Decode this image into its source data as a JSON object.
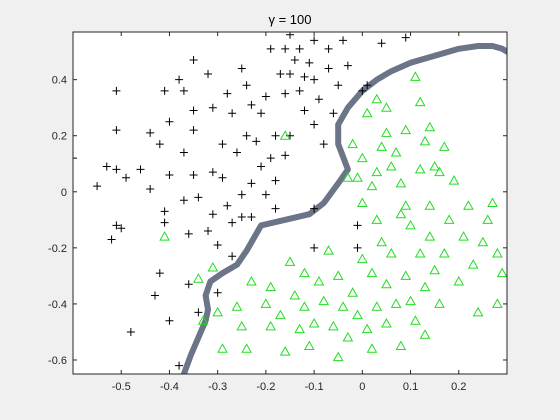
{
  "chart_data": {
    "type": "scatter",
    "title": "γ = 100",
    "xlabel": "",
    "ylabel": "",
    "xlim": [
      -0.6,
      0.3
    ],
    "ylim": [
      -0.65,
      0.57
    ],
    "x_ticks": [
      -0.5,
      -0.4,
      -0.3,
      -0.2,
      -0.1,
      0,
      0.1,
      0.2
    ],
    "x_tick_labels": [
      "-0.5",
      "-0.4",
      "-0.3",
      "-0.2",
      "-0.1",
      "0",
      "0.1",
      "0.2"
    ],
    "y_ticks": [
      -0.6,
      -0.4,
      -0.2,
      0,
      0.2,
      0.4
    ],
    "y_tick_labels": [
      "-0.6",
      "-0.4",
      "-0.2",
      "0",
      "0.2",
      "0.4"
    ],
    "grid": false,
    "legend": "none",
    "colors": {
      "plus_series": "#000000",
      "triangle_series": "#22dd22",
      "boundary": "#6b7587",
      "axes_background": "#ffffff",
      "figure_background": "#f0f0f0"
    },
    "series": [
      {
        "marker": "plus",
        "points": [
          [
            -0.6,
            0.12
          ],
          [
            -0.55,
            0.02
          ],
          [
            -0.53,
            0.09
          ],
          [
            -0.51,
            0.36
          ],
          [
            -0.51,
            0.22
          ],
          [
            -0.52,
            -0.17
          ],
          [
            -0.51,
            -0.12
          ],
          [
            -0.5,
            -0.13
          ],
          [
            -0.51,
            0.08
          ],
          [
            -0.49,
            0.05
          ],
          [
            -0.48,
            -0.5
          ],
          [
            -0.46,
            0.08
          ],
          [
            -0.44,
            0.21
          ],
          [
            -0.44,
            0.01
          ],
          [
            -0.43,
            -0.37
          ],
          [
            -0.42,
            -0.29
          ],
          [
            -0.42,
            0.17
          ],
          [
            -0.41,
            0.36
          ],
          [
            -0.4,
            0.06
          ],
          [
            -0.41,
            -0.07
          ],
          [
            -0.41,
            -0.11
          ],
          [
            -0.4,
            -0.46
          ],
          [
            -0.4,
            0.25
          ],
          [
            -0.38,
            0.4
          ],
          [
            -0.37,
            0.36
          ],
          [
            -0.37,
            0.14
          ],
          [
            -0.37,
            -0.03
          ],
          [
            -0.38,
            -0.62
          ],
          [
            -0.35,
            0.47
          ],
          [
            -0.36,
            -0.15
          ],
          [
            -0.36,
            -0.33
          ],
          [
            -0.35,
            0.29
          ],
          [
            -0.35,
            0.22
          ],
          [
            -0.35,
            0.06
          ],
          [
            -0.34,
            -0.02
          ],
          [
            -0.34,
            -0.43
          ],
          [
            -0.32,
            0.42
          ],
          [
            -0.32,
            -0.14
          ],
          [
            -0.31,
            0.3
          ],
          [
            -0.31,
            0.07
          ],
          [
            -0.31,
            -0.08
          ],
          [
            -0.3,
            -0.19
          ],
          [
            -0.3,
            -0.36
          ],
          [
            -0.29,
            0.17
          ],
          [
            -0.29,
            0.05
          ],
          [
            -0.28,
            0.35
          ],
          [
            -0.28,
            -0.05
          ],
          [
            -0.27,
            0.28
          ],
          [
            -0.27,
            -0.11
          ],
          [
            -0.27,
            -0.23
          ],
          [
            -0.26,
            0.14
          ],
          [
            -0.25,
            0.44
          ],
          [
            -0.25,
            -0.01
          ],
          [
            -0.25,
            -0.09
          ],
          [
            -0.24,
            0.38
          ],
          [
            -0.24,
            0.2
          ],
          [
            -0.23,
            0.31
          ],
          [
            -0.23,
            0.03
          ],
          [
            -0.23,
            -0.09
          ],
          [
            -0.22,
            0.18
          ],
          [
            -0.21,
            0.28
          ],
          [
            -0.21,
            0.09
          ],
          [
            -0.2,
            -0.01
          ],
          [
            -0.2,
            0.34
          ],
          [
            -0.19,
            0.51
          ],
          [
            -0.19,
            0.12
          ],
          [
            -0.18,
            0.2
          ],
          [
            -0.18,
            0.04
          ],
          [
            -0.18,
            -0.06
          ],
          [
            -0.17,
            0.42
          ],
          [
            -0.16,
            0.51
          ],
          [
            -0.16,
            0.35
          ],
          [
            -0.16,
            0.13
          ],
          [
            -0.15,
            0.2
          ],
          [
            -0.15,
            0.56
          ],
          [
            -0.15,
            0.42
          ],
          [
            -0.14,
            0.47
          ],
          [
            -0.13,
            0.36
          ],
          [
            -0.13,
            0.51
          ],
          [
            -0.12,
            0.29
          ],
          [
            -0.12,
            0.41
          ],
          [
            -0.11,
            0.46
          ],
          [
            -0.1,
            0.54
          ],
          [
            -0.1,
            0.4
          ],
          [
            -0.1,
            0.24
          ],
          [
            -0.1,
            -0.06
          ],
          [
            -0.1,
            -0.2
          ],
          [
            -0.09,
            0.33
          ],
          [
            -0.08,
            0.17
          ],
          [
            -0.07,
            0.44
          ],
          [
            -0.07,
            0.51
          ],
          [
            -0.06,
            0.28
          ],
          [
            -0.05,
            0.38
          ],
          [
            -0.04,
            0.54
          ],
          [
            -0.03,
            0.45
          ],
          [
            -0.01,
            -0.12
          ],
          [
            -0.01,
            -0.2
          ],
          [
            0.0,
            0.36
          ],
          [
            0.01,
            0.38
          ],
          [
            0.04,
            0.53
          ],
          [
            0.09,
            0.55
          ]
        ]
      },
      {
        "marker": "triangle",
        "points": [
          [
            -0.41,
            -0.16
          ],
          [
            -0.34,
            -0.31
          ],
          [
            -0.33,
            -0.46
          ],
          [
            -0.31,
            -0.27
          ],
          [
            -0.3,
            -0.43
          ],
          [
            -0.29,
            -0.56
          ],
          [
            -0.26,
            -0.41
          ],
          [
            -0.25,
            -0.48
          ],
          [
            -0.24,
            -0.56
          ],
          [
            -0.23,
            -0.32
          ],
          [
            -0.2,
            -0.4
          ],
          [
            -0.19,
            -0.48
          ],
          [
            -0.19,
            -0.34
          ],
          [
            -0.17,
            -0.44
          ],
          [
            -0.16,
            -0.57
          ],
          [
            -0.15,
            -0.25
          ],
          [
            -0.14,
            -0.37
          ],
          [
            -0.13,
            -0.49
          ],
          [
            -0.12,
            -0.29
          ],
          [
            -0.12,
            -0.41
          ],
          [
            -0.11,
            -0.55
          ],
          [
            -0.1,
            -0.47
          ],
          [
            -0.09,
            -0.32
          ],
          [
            -0.08,
            -0.39
          ],
          [
            -0.07,
            -0.21
          ],
          [
            -0.06,
            -0.48
          ],
          [
            -0.05,
            -0.59
          ],
          [
            -0.05,
            -0.3
          ],
          [
            -0.04,
            -0.41
          ],
          [
            -0.03,
            -0.52
          ],
          [
            -0.02,
            -0.36
          ],
          [
            -0.01,
            -0.44
          ],
          [
            0.0,
            -0.24
          ],
          [
            0.01,
            -0.49
          ],
          [
            0.02,
            -0.56
          ],
          [
            0.02,
            -0.29
          ],
          [
            0.03,
            -0.41
          ],
          [
            0.03,
            -0.1
          ],
          [
            0.04,
            -0.18
          ],
          [
            0.05,
            -0.33
          ],
          [
            0.05,
            -0.47
          ],
          [
            0.06,
            -0.22
          ],
          [
            0.07,
            -0.4
          ],
          [
            0.08,
            -0.55
          ],
          [
            0.08,
            -0.08
          ],
          [
            0.09,
            -0.3
          ],
          [
            0.1,
            -0.12
          ],
          [
            0.1,
            -0.39
          ],
          [
            0.11,
            -0.46
          ],
          [
            0.12,
            -0.22
          ],
          [
            0.13,
            -0.34
          ],
          [
            0.13,
            -0.51
          ],
          [
            0.14,
            -0.05
          ],
          [
            0.14,
            -0.16
          ],
          [
            0.15,
            0.09
          ],
          [
            0.15,
            -0.28
          ],
          [
            0.16,
            -0.4
          ],
          [
            0.17,
            0.16
          ],
          [
            0.17,
            -0.22
          ],
          [
            0.18,
            -0.1
          ],
          [
            0.19,
            0.04
          ],
          [
            0.2,
            -0.32
          ],
          [
            0.21,
            -0.16
          ],
          [
            0.22,
            -0.05
          ],
          [
            0.23,
            -0.26
          ],
          [
            0.24,
            -0.43
          ],
          [
            0.25,
            -0.18
          ],
          [
            0.26,
            -0.1
          ],
          [
            0.27,
            -0.04
          ],
          [
            0.28,
            -0.22
          ],
          [
            0.28,
            -0.4
          ],
          [
            0.29,
            -0.29
          ],
          [
            0.11,
            0.41
          ],
          [
            0.12,
            0.32
          ],
          [
            0.09,
            0.22
          ],
          [
            0.07,
            0.14
          ],
          [
            0.05,
            0.21
          ],
          [
            0.04,
            0.16
          ],
          [
            0.03,
            0.07
          ],
          [
            0.02,
            0.02
          ],
          [
            0.0,
            0.12
          ],
          [
            -0.01,
            0.05
          ],
          [
            -0.02,
            0.17
          ],
          [
            -0.03,
            0.05
          ],
          [
            0.0,
            -0.04
          ],
          [
            0.06,
            0.09
          ],
          [
            0.08,
            0.03
          ],
          [
            0.09,
            -0.05
          ],
          [
            0.12,
            0.08
          ],
          [
            0.13,
            0.18
          ],
          [
            0.14,
            0.23
          ],
          [
            0.16,
            0.07
          ],
          [
            0.01,
            0.28
          ],
          [
            0.05,
            0.3
          ],
          [
            0.03,
            0.33
          ],
          [
            -0.16,
            0.2
          ]
        ]
      }
    ],
    "decision_boundary": [
      [
        -0.37,
        -0.65
      ],
      [
        -0.355,
        -0.58
      ],
      [
        -0.34,
        -0.52
      ],
      [
        -0.325,
        -0.46
      ],
      [
        -0.32,
        -0.42
      ],
      [
        -0.325,
        -0.37
      ],
      [
        -0.315,
        -0.32
      ],
      [
        -0.29,
        -0.29
      ],
      [
        -0.26,
        -0.26
      ],
      [
        -0.24,
        -0.21
      ],
      [
        -0.21,
        -0.12
      ],
      [
        -0.16,
        -0.1
      ],
      [
        -0.11,
        -0.08
      ],
      [
        -0.08,
        -0.04
      ],
      [
        -0.05,
        0.03
      ],
      [
        -0.03,
        0.08
      ],
      [
        -0.05,
        0.17
      ],
      [
        -0.05,
        0.24
      ],
      [
        -0.03,
        0.3
      ],
      [
        0.0,
        0.36
      ],
      [
        0.03,
        0.4
      ],
      [
        0.06,
        0.43
      ],
      [
        0.1,
        0.46
      ],
      [
        0.16,
        0.49
      ],
      [
        0.2,
        0.51
      ],
      [
        0.24,
        0.52
      ],
      [
        0.27,
        0.52
      ],
      [
        0.29,
        0.51
      ],
      [
        0.3,
        0.5
      ]
    ]
  }
}
